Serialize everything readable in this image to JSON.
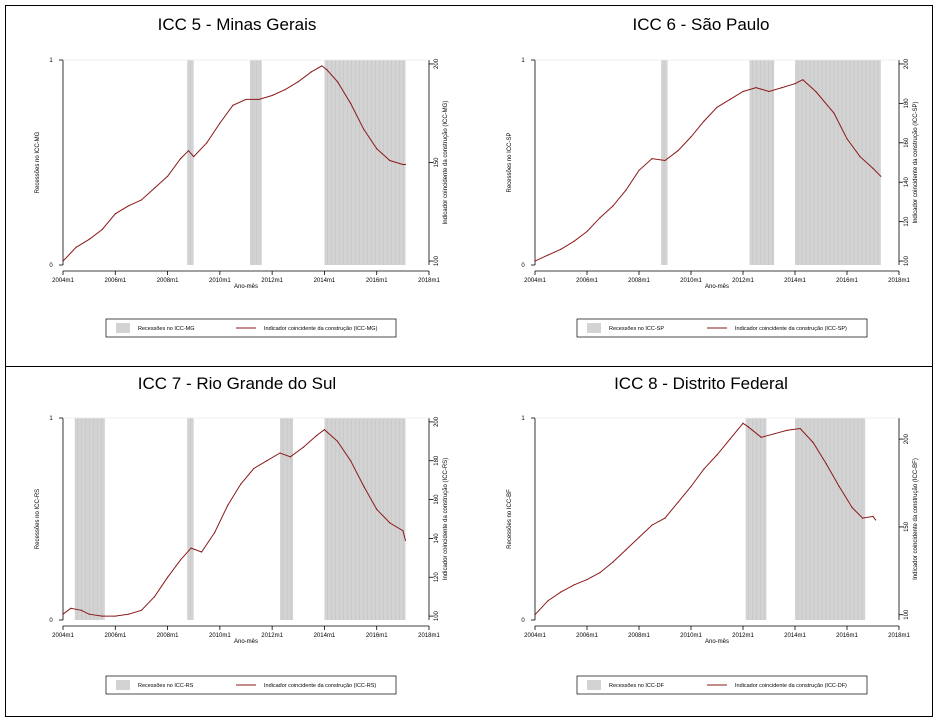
{
  "chart_data": [
    {
      "type": "line",
      "title": "ICC 5 - Minas Gerais",
      "xlabel": "Ano-mês",
      "ylabel_left": "Recessões no ICC-MG",
      "ylabel_right": "Indicador coincidente da construção (ICC-MG)",
      "xticks": [
        "2004m1",
        "2006m1",
        "2008m1",
        "2010m1",
        "2012m1",
        "2014m1",
        "2016m1",
        "2018m1"
      ],
      "xlim": [
        2004.0,
        2018.0
      ],
      "yticks_left": [
        "0",
        "1"
      ],
      "yticks_right": [
        100,
        150,
        200
      ],
      "ylim_right": [
        98,
        202
      ],
      "legend": [
        "Recessões no ICC-MG",
        "Indicador coincidente da construção (ICC-MG)"
      ],
      "legend_position": "bottom",
      "recessions": [
        [
          2008.75,
          2009.0
        ],
        [
          2011.15,
          2011.6
        ],
        [
          2014.0,
          2017.1
        ]
      ],
      "series": [
        {
          "name": "Indicador coincidente da construção (ICC-MG)",
          "color": "#8b1a1a",
          "x": [
            2004.0,
            2004.5,
            2005.0,
            2005.5,
            2006.0,
            2006.5,
            2007.0,
            2007.5,
            2008.0,
            2008.5,
            2008.8,
            2009.0,
            2009.5,
            2010.0,
            2010.5,
            2011.0,
            2011.5,
            2012.0,
            2012.5,
            2013.0,
            2013.5,
            2013.9,
            2014.1,
            2014.5,
            2015.0,
            2015.5,
            2016.0,
            2016.5,
            2017.0,
            2017.1
          ],
          "y": [
            100,
            107,
            111,
            116,
            124,
            128,
            131,
            137,
            143,
            152,
            156,
            153,
            160,
            170,
            179,
            182,
            182,
            184,
            187,
            191,
            196,
            199,
            197,
            191,
            180,
            167,
            157,
            151,
            149,
            149
          ]
        }
      ]
    },
    {
      "type": "line",
      "title": "ICC 6 - São Paulo",
      "xlabel": "Ano-mês",
      "ylabel_left": "Recessões no ICC-SP",
      "ylabel_right": "Indicador coincidente da construção (ICC-SP)",
      "xticks": [
        "2004m1",
        "2006m1",
        "2008m1",
        "2010m1",
        "2012m1",
        "2014m1",
        "2016m1",
        "2018m1"
      ],
      "xlim": [
        2004.0,
        2018.0
      ],
      "yticks_left": [
        "0",
        "1"
      ],
      "yticks_right": [
        100,
        120,
        140,
        160,
        180,
        200
      ],
      "ylim_right": [
        98,
        202
      ],
      "legend": [
        "Recessões no ICC-SP",
        "Indicador coincidente da construção (ICC-SP)"
      ],
      "legend_position": "bottom",
      "recessions": [
        [
          2008.85,
          2009.1
        ],
        [
          2012.25,
          2013.2
        ],
        [
          2014.0,
          2017.3
        ]
      ],
      "series": [
        {
          "name": "Indicador coincidente da construção (ICC-SP)",
          "color": "#8b1a1a",
          "x": [
            2004.0,
            2004.5,
            2005.0,
            2005.5,
            2006.0,
            2006.5,
            2007.0,
            2007.5,
            2008.0,
            2008.5,
            2009.0,
            2009.5,
            2010.0,
            2010.5,
            2011.0,
            2011.5,
            2012.0,
            2012.5,
            2013.0,
            2013.5,
            2014.0,
            2014.3,
            2014.8,
            2015.5,
            2016.0,
            2016.5,
            2017.0,
            2017.3
          ],
          "y": [
            100,
            103,
            106,
            110,
            115,
            122,
            128,
            136,
            146,
            152,
            151,
            156,
            163,
            171,
            178,
            182,
            186,
            188,
            186,
            188,
            190,
            192,
            186,
            175,
            162,
            153,
            147,
            143
          ]
        }
      ]
    },
    {
      "type": "line",
      "title": "ICC 7 - Rio Grande do Sul",
      "xlabel": "Ano-mês",
      "ylabel_left": "Recessões no ICC-RS",
      "ylabel_right": "Indicador coincidente da construção (ICC-RS)",
      "xticks": [
        "2004m1",
        "2006m1",
        "2008m1",
        "2010m1",
        "2012m1",
        "2014m1",
        "2016m1",
        "2018m1"
      ],
      "xlim": [
        2004.0,
        2018.0
      ],
      "yticks_left": [
        "0",
        "1"
      ],
      "yticks_right": [
        100,
        120,
        140,
        160,
        180,
        200
      ],
      "ylim_right": [
        98,
        202
      ],
      "legend": [
        "Recessões no ICC-RS",
        "Indicador coincidente da construção (ICC-RS)"
      ],
      "legend_position": "bottom",
      "recessions": [
        [
          2004.45,
          2005.6
        ],
        [
          2008.75,
          2009.0
        ],
        [
          2012.3,
          2012.8
        ],
        [
          2014.0,
          2017.1
        ]
      ],
      "series": [
        {
          "name": "Indicador coincidente da construção (ICC-RS)",
          "color": "#8b1a1a",
          "x": [
            2004.0,
            2004.3,
            2004.7,
            2005.0,
            2005.5,
            2006.0,
            2006.5,
            2007.0,
            2007.5,
            2008.0,
            2008.5,
            2008.9,
            2009.3,
            2009.8,
            2010.3,
            2010.8,
            2011.3,
            2011.8,
            2012.3,
            2012.7,
            2013.2,
            2013.7,
            2014.0,
            2014.5,
            2015.0,
            2015.5,
            2016.0,
            2016.5,
            2017.0,
            2017.1
          ],
          "y": [
            101,
            104,
            103,
            101,
            100,
            100,
            101,
            103,
            110,
            120,
            129,
            135,
            133,
            143,
            157,
            168,
            176,
            180,
            184,
            182,
            187,
            193,
            196,
            190,
            180,
            167,
            155,
            148,
            144,
            139
          ]
        }
      ]
    },
    {
      "type": "line",
      "title": "ICC 8 - Distrito Federal",
      "xlabel": "Ano-mês",
      "ylabel_left": "Recessões no ICC-BF",
      "ylabel_right": "Indicador coincidente da construção (ICC-BF)",
      "xticks": [
        "2004m1",
        "2006m1",
        "2008m1",
        "2010m1",
        "2012m1",
        "2014m1",
        "2016m1",
        "2018m1"
      ],
      "xlim": [
        2004.0,
        2018.0
      ],
      "yticks_left": [
        "0",
        "1"
      ],
      "yticks_right": [
        100,
        150,
        200
      ],
      "ylim_right": [
        97,
        212
      ],
      "legend": [
        "Recessões no ICC-DF",
        "Indicador coincidente da construção (ICC-DF)"
      ],
      "legend_position": "bottom",
      "recessions": [
        [
          2012.1,
          2012.9
        ],
        [
          2014.0,
          2016.7
        ]
      ],
      "series": [
        {
          "name": "Indicador coincidente da construção (ICC-DF)",
          "color": "#8b1a1a",
          "x": [
            2004.0,
            2004.5,
            2005.0,
            2005.5,
            2006.0,
            2006.5,
            2007.0,
            2007.5,
            2008.0,
            2008.5,
            2009.0,
            2009.5,
            2010.0,
            2010.5,
            2011.0,
            2011.5,
            2012.0,
            2012.2,
            2012.7,
            2013.2,
            2013.7,
            2014.2,
            2014.7,
            2015.2,
            2015.7,
            2016.2,
            2016.6,
            2017.0,
            2017.1
          ],
          "y": [
            100,
            108,
            113,
            117,
            120,
            124,
            130,
            137,
            144,
            151,
            155,
            164,
            173,
            183,
            191,
            200,
            209,
            207,
            201,
            203,
            205,
            206,
            198,
            186,
            173,
            161,
            155,
            156,
            154
          ]
        }
      ]
    }
  ]
}
